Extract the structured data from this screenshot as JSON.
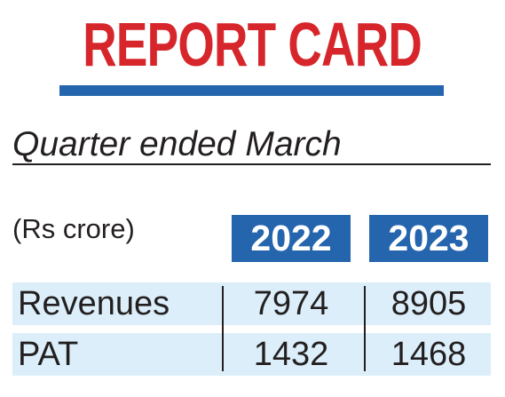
{
  "title": "REPORT CARD",
  "subtitle": "Quarter ended March",
  "chart_data": {
    "type": "table",
    "title": "REPORT CARD",
    "subtitle": "Quarter ended March",
    "unit": "(Rs crore)",
    "columns": [
      "2022",
      "2023"
    ],
    "rows": [
      {
        "label": "Revenues",
        "values": [
          "7974",
          "8905"
        ]
      },
      {
        "label": "PAT",
        "values": [
          "1432",
          "1468"
        ]
      }
    ]
  },
  "colors": {
    "title": "#d7262b",
    "accent": "#2565ae",
    "row_band": "#dbeef9",
    "text": "#231f20"
  }
}
